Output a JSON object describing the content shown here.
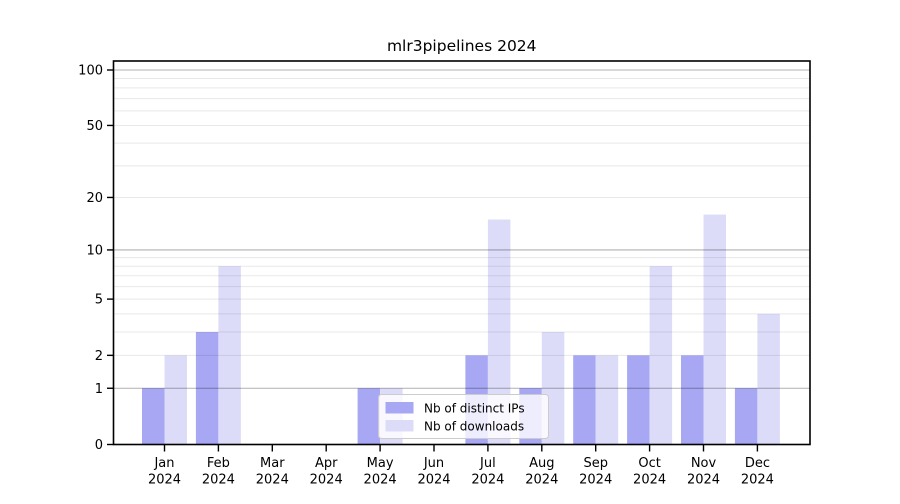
{
  "figure": {
    "background": "#ffffff"
  },
  "chart_data": {
    "type": "bar",
    "title": "mlr3pipelines 2024",
    "categories": [
      "Jan 2024",
      "Feb 2024",
      "Mar 2024",
      "Apr 2024",
      "May 2024",
      "Jun 2024",
      "Jul 2024",
      "Aug 2024",
      "Sep 2024",
      "Oct 2024",
      "Nov 2024",
      "Dec 2024"
    ],
    "series": [
      {
        "name": "Nb of distinct IPs",
        "color": "#a7a7f4",
        "values": [
          1,
          3,
          0,
          0,
          1,
          0,
          2,
          1,
          2,
          2,
          2,
          1
        ]
      },
      {
        "name": "Nb of downloads",
        "color": "#dcdcf9",
        "values": [
          2,
          8,
          0,
          0,
          1,
          0,
          15,
          3,
          2,
          8,
          16,
          4
        ]
      }
    ],
    "xlabel": "",
    "ylabel": "",
    "yscale": "log1p",
    "ylim": [
      0,
      112
    ],
    "yticks": [
      0,
      1,
      2,
      5,
      10,
      20,
      50,
      100
    ],
    "major_gridlines": [
      1,
      10,
      100
    ],
    "minor_gridlines": [
      2,
      3,
      4,
      5,
      6,
      7,
      8,
      9,
      20,
      30,
      40,
      50,
      60,
      70,
      80,
      90
    ],
    "grid": "on",
    "legend_position": "lower center",
    "major_grid_color": "#b0b0b0",
    "minor_grid_color": "#e8e8e8",
    "spine_color": "#000000",
    "legend_border_color": "#cccccc"
  }
}
